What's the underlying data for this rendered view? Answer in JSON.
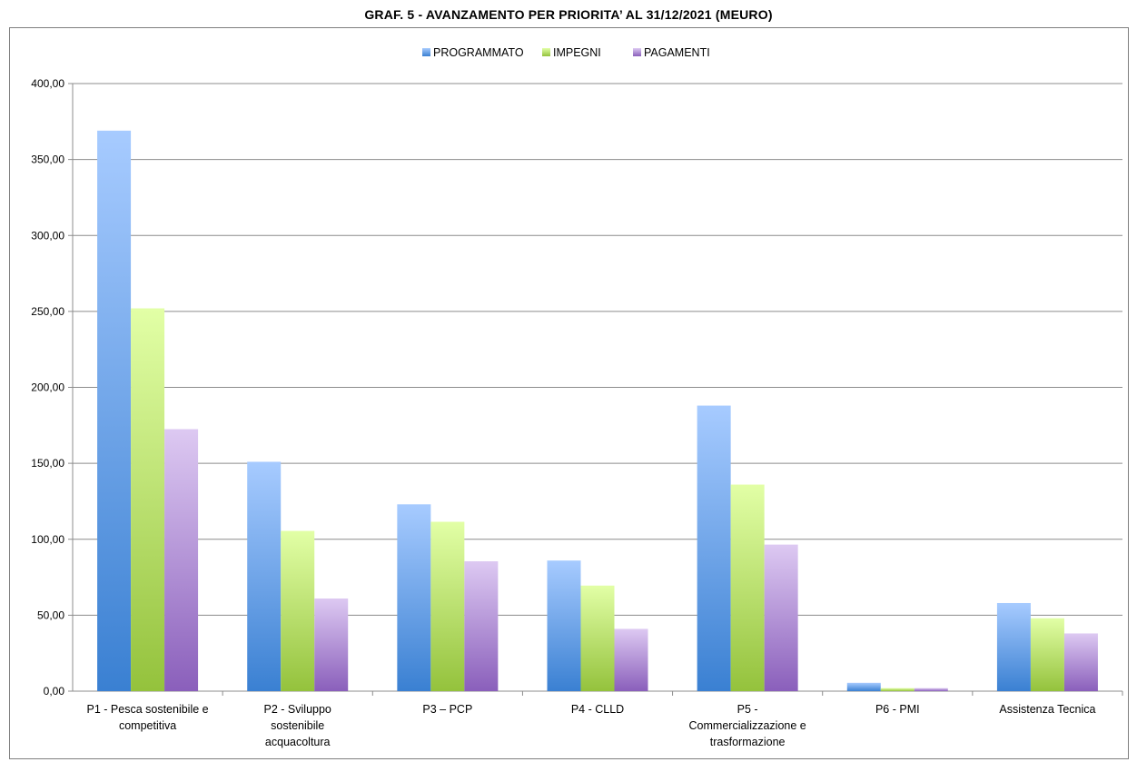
{
  "chart_data": {
    "type": "bar",
    "title": "GRAF. 5 - AVANZAMENTO PER PRIORITA’ AL 31/12/2021 (MEURO)",
    "categories": [
      [
        "P1 - Pesca sostenibile e",
        "competitiva"
      ],
      [
        "P2 - Sviluppo",
        "sostenibile",
        "acquacoltura"
      ],
      [
        "P3 – PCP"
      ],
      [
        "P4 -  CLLD"
      ],
      [
        "P5 -",
        "Commercializzazione e",
        "trasformazione"
      ],
      [
        "P6 - PMI"
      ],
      [
        "Assistenza Tecnica"
      ]
    ],
    "series": [
      {
        "name": "PROGRAMMATO",
        "values": [
          369.0,
          151.0,
          123.0,
          86.0,
          188.0,
          5.5,
          58.0
        ],
        "color_top": "#a7cbff",
        "color_bottom": "#3a80d2"
      },
      {
        "name": "IMPEGNI",
        "values": [
          252.0,
          105.5,
          111.5,
          69.5,
          136.0,
          2.0,
          48.0
        ],
        "color_top": "#e2ffa6",
        "color_bottom": "#94c23c"
      },
      {
        "name": "PAGAMENTI",
        "values": [
          172.5,
          61.0,
          85.5,
          41.0,
          96.5,
          2.0,
          38.0
        ],
        "color_top": "#ddc9f2",
        "color_bottom": "#8a5fbb"
      }
    ],
    "ylim": [
      0,
      400
    ],
    "yticks": [
      0,
      50,
      100,
      150,
      200,
      250,
      300,
      350,
      400
    ],
    "ytick_labels": [
      "0,00",
      "50,00",
      "100,00",
      "150,00",
      "200,00",
      "250,00",
      "300,00",
      "350,00",
      "400,00"
    ],
    "grid": true,
    "legend_position": "top-center",
    "xlabel": "",
    "ylabel": ""
  }
}
